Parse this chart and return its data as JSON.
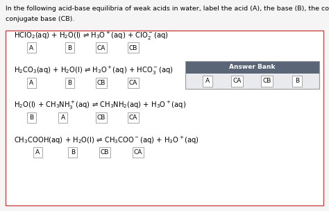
{
  "title_line1": "In the following acid-base equilibria of weak acids in water, label the acid (A), the base (B), the conjugate acid (CA), and the",
  "title_line2": "conjugate base (CB).",
  "title_fontsize": 6.8,
  "box_border_color": "#cc4444",
  "background_color": "#f5f5f5",
  "answer_bank_bg": "#5a6678",
  "answer_bank_text_color": "#ffffff",
  "answer_bank_title": "Answer Bank",
  "answer_bank_items": [
    "A",
    "CA",
    "CB",
    "B"
  ],
  "equations": [
    {
      "text": "HClO$_2$(aq) + H$_2$O(l) ⇌ H$_3$O$^+$(aq) + ClO$_2^-$(aq)",
      "labels": [
        [
          "A",
          0.055
        ],
        [
          "B",
          0.175
        ],
        [
          "CA",
          0.275
        ],
        [
          "CB",
          0.375
        ]
      ]
    },
    {
      "text": "H$_2$CO$_3$(aq) + H$_2$O(l) ⇌ H$_3$O$^+$(aq) + HCO$_3^-$(aq)",
      "labels": [
        [
          "A",
          0.055
        ],
        [
          "B",
          0.175
        ],
        [
          "CB",
          0.275
        ],
        [
          "CA",
          0.375
        ]
      ]
    },
    {
      "text": "H$_2$O(l) + CH$_3$NH$_3^+$(aq) ⇌ CH$_3$NH$_2$(aq) + H$_3$O$^+$(aq)",
      "labels": [
        [
          "B",
          0.055
        ],
        [
          "A",
          0.155
        ],
        [
          "CB",
          0.275
        ],
        [
          "CA",
          0.375
        ]
      ]
    },
    {
      "text": "CH$_3$COOH(aq) + H$_2$O(l) ⇌ CH$_3$COO$^-$(aq) + H$_3$O$^+$(aq)",
      "labels": [
        [
          "A",
          0.075
        ],
        [
          "B",
          0.185
        ],
        [
          "CB",
          0.285
        ],
        [
          "CA",
          0.39
        ]
      ]
    }
  ],
  "eq_font": 7.2,
  "label_font": 6.5
}
